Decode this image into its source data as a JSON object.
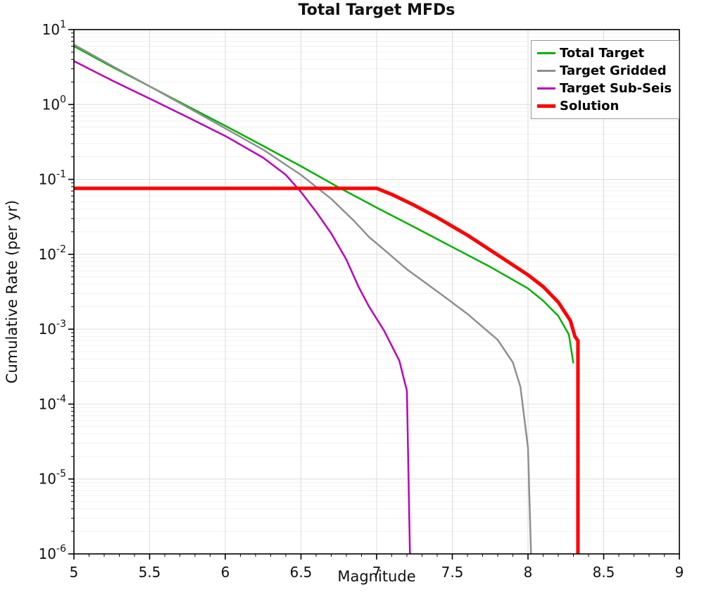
{
  "chart_data": {
    "type": "line",
    "title": "Total Target MFDs",
    "xlabel": "Magnitude",
    "ylabel": "Cumulative Rate (per yr)",
    "x_axis": {
      "min": 5,
      "max": 9,
      "ticks": [
        5,
        5.5,
        6,
        6.5,
        7,
        7.5,
        8,
        8.5,
        9
      ],
      "tick_labels": [
        "5",
        "5.5",
        "6",
        "6.5",
        "7",
        "7.5",
        "8",
        "8.5",
        "9"
      ]
    },
    "y_axis": {
      "scale": "log",
      "min_exp": -6,
      "max_exp": 1,
      "tick_exponents": [
        1,
        0,
        -1,
        -2,
        -3,
        -4,
        -5,
        -6
      ]
    },
    "grid": {
      "on": true,
      "major_color": "#dcdcdc",
      "minor_color": "#f1f1f1"
    },
    "axis_color": "#000000",
    "background": "#ffffff",
    "legend": {
      "position": "top-right",
      "border_color": "#9a9a9a",
      "background": "#ffffff"
    },
    "series": [
      {
        "name": "Total Target",
        "color": "#00b300",
        "width": 2.5,
        "points": [
          [
            5.0,
            6.0
          ],
          [
            5.25,
            3.2
          ],
          [
            5.5,
            1.75
          ],
          [
            5.75,
            0.95
          ],
          [
            6.0,
            0.52
          ],
          [
            6.25,
            0.28
          ],
          [
            6.5,
            0.15
          ],
          [
            6.75,
            0.078
          ],
          [
            7.0,
            0.042
          ],
          [
            7.25,
            0.023
          ],
          [
            7.5,
            0.0125
          ],
          [
            7.75,
            0.0068
          ],
          [
            8.0,
            0.0035
          ],
          [
            8.1,
            0.0024
          ],
          [
            8.2,
            0.0015
          ],
          [
            8.27,
            0.00085
          ],
          [
            8.3,
            0.00035
          ]
        ]
      },
      {
        "name": "Target Gridded",
        "color": "#8f8f8f",
        "width": 2.5,
        "points": [
          [
            5.0,
            6.3
          ],
          [
            5.25,
            3.3
          ],
          [
            5.5,
            1.75
          ],
          [
            5.75,
            0.92
          ],
          [
            6.0,
            0.48
          ],
          [
            6.25,
            0.25
          ],
          [
            6.5,
            0.115
          ],
          [
            6.7,
            0.055
          ],
          [
            6.85,
            0.028
          ],
          [
            6.95,
            0.017
          ],
          [
            7.05,
            0.0115
          ],
          [
            7.2,
            0.0063
          ],
          [
            7.4,
            0.0032
          ],
          [
            7.6,
            0.0016
          ],
          [
            7.8,
            0.00072
          ],
          [
            7.9,
            0.00036
          ],
          [
            7.95,
            0.00017
          ],
          [
            8.0,
            2.6e-05
          ],
          [
            8.02,
            1e-06
          ]
        ]
      },
      {
        "name": "Target Sub-Seis",
        "color": "#bb00bb",
        "width": 2.5,
        "points": [
          [
            5.0,
            3.8
          ],
          [
            5.25,
            2.1
          ],
          [
            5.5,
            1.2
          ],
          [
            5.75,
            0.68
          ],
          [
            6.0,
            0.38
          ],
          [
            6.25,
            0.195
          ],
          [
            6.4,
            0.115
          ],
          [
            6.5,
            0.068
          ],
          [
            6.6,
            0.037
          ],
          [
            6.7,
            0.019
          ],
          [
            6.8,
            0.0085
          ],
          [
            6.88,
            0.0037
          ],
          [
            6.95,
            0.002
          ],
          [
            7.05,
            0.00095
          ],
          [
            7.15,
            0.00038
          ],
          [
            7.2,
            0.00015
          ],
          [
            7.22,
            1e-06
          ]
        ]
      },
      {
        "name": "Solution",
        "color": "#ff0000",
        "width": 5,
        "points": [
          [
            5.0,
            0.076
          ],
          [
            7.0,
            0.076
          ],
          [
            7.1,
            0.063
          ],
          [
            7.25,
            0.045
          ],
          [
            7.4,
            0.031
          ],
          [
            7.6,
            0.018
          ],
          [
            7.8,
            0.0098
          ],
          [
            8.0,
            0.0053
          ],
          [
            8.1,
            0.0037
          ],
          [
            8.2,
            0.0023
          ],
          [
            8.28,
            0.0013
          ],
          [
            8.31,
            0.0008
          ],
          [
            8.33,
            0.0007
          ],
          [
            8.33,
            1e-06
          ]
        ]
      }
    ]
  }
}
